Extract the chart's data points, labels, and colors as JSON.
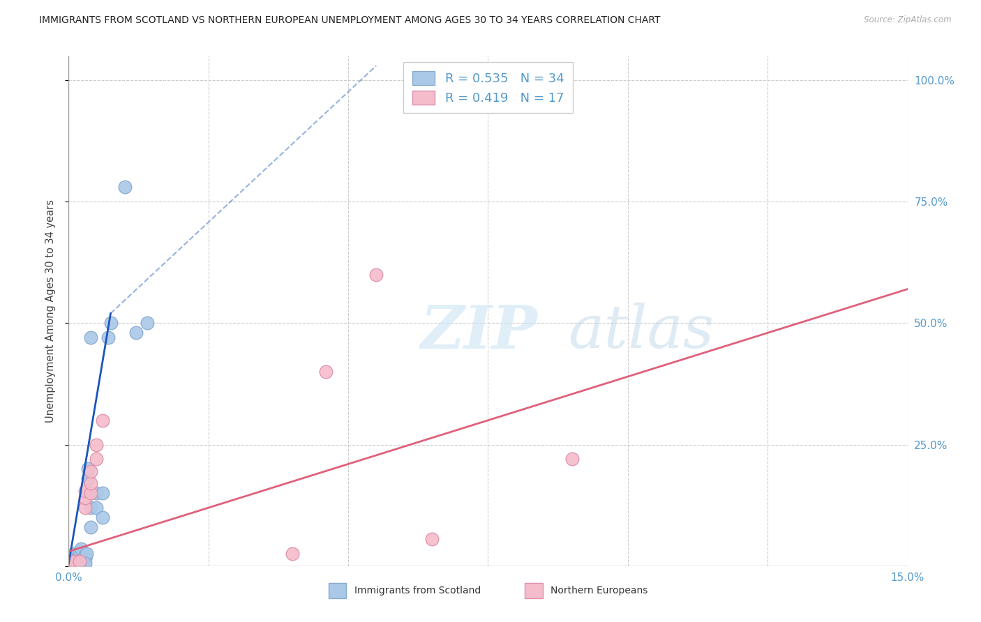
{
  "title": "IMMIGRANTS FROM SCOTLAND VS NORTHERN EUROPEAN UNEMPLOYMENT AMONG AGES 30 TO 34 YEARS CORRELATION CHART",
  "source": "Source: ZipAtlas.com",
  "ylabel": "Unemployment Among Ages 30 to 34 years",
  "xlim": [
    0.0,
    0.15
  ],
  "ylim": [
    0.0,
    1.05
  ],
  "xticks": [
    0.0,
    0.025,
    0.05,
    0.075,
    0.1,
    0.125,
    0.15
  ],
  "xticklabels": [
    "0.0%",
    "",
    "",
    "",
    "",
    "",
    "15.0%"
  ],
  "yticks": [
    0.0,
    0.25,
    0.5,
    0.75,
    1.0
  ],
  "yticklabels_right": [
    "",
    "25.0%",
    "50.0%",
    "75.0%",
    "100.0%"
  ],
  "legend_r1": "0.535",
  "legend_n1": "34",
  "legend_r2": "0.419",
  "legend_n2": "17",
  "scotland_color": "#aac8e8",
  "scotland_edge": "#88aad0",
  "northern_color": "#f5bccb",
  "northern_edge": "#e090a8",
  "line_scotland_color": "#1a55bb",
  "line_northern_color": "#e0607a",
  "scotland_points": [
    [
      0.0005,
      0.005
    ],
    [
      0.0008,
      0.008
    ],
    [
      0.001,
      0.012
    ],
    [
      0.001,
      0.018
    ],
    [
      0.001,
      0.025
    ],
    [
      0.0012,
      0.005
    ],
    [
      0.0015,
      0.01
    ],
    [
      0.0015,
      0.015
    ],
    [
      0.002,
      0.008
    ],
    [
      0.002,
      0.012
    ],
    [
      0.002,
      0.02
    ],
    [
      0.002,
      0.03
    ],
    [
      0.0022,
      0.035
    ],
    [
      0.0025,
      0.005
    ],
    [
      0.003,
      0.015
    ],
    [
      0.003,
      0.018
    ],
    [
      0.003,
      0.022
    ],
    [
      0.0032,
      0.025
    ],
    [
      0.0035,
      0.18
    ],
    [
      0.0035,
      0.2
    ],
    [
      0.004,
      0.08
    ],
    [
      0.004,
      0.12
    ],
    [
      0.004,
      0.15
    ],
    [
      0.004,
      0.47
    ],
    [
      0.005,
      0.12
    ],
    [
      0.005,
      0.15
    ],
    [
      0.006,
      0.1
    ],
    [
      0.006,
      0.15
    ],
    [
      0.007,
      0.47
    ],
    [
      0.0075,
      0.5
    ],
    [
      0.01,
      0.78
    ],
    [
      0.012,
      0.48
    ],
    [
      0.014,
      0.5
    ],
    [
      0.003,
      0.005
    ]
  ],
  "northern_points": [
    [
      0.0005,
      0.005
    ],
    [
      0.001,
      0.01
    ],
    [
      0.002,
      0.01
    ],
    [
      0.003,
      0.12
    ],
    [
      0.003,
      0.14
    ],
    [
      0.003,
      0.155
    ],
    [
      0.004,
      0.15
    ],
    [
      0.004,
      0.17
    ],
    [
      0.004,
      0.195
    ],
    [
      0.005,
      0.22
    ],
    [
      0.005,
      0.25
    ],
    [
      0.006,
      0.3
    ],
    [
      0.04,
      0.025
    ],
    [
      0.065,
      0.055
    ],
    [
      0.046,
      0.4
    ],
    [
      0.09,
      0.22
    ],
    [
      0.055,
      0.6
    ]
  ],
  "trendline_scotland_solid_x0": 0.0,
  "trendline_scotland_solid_y0": 0.005,
  "trendline_scotland_solid_x1": 0.0075,
  "trendline_scotland_solid_y1": 0.52,
  "trendline_scotland_dash_x0": 0.0075,
  "trendline_scotland_dash_y0": 0.52,
  "trendline_scotland_dash_x1": 0.055,
  "trendline_scotland_dash_y1": 1.03,
  "trendline_northern_x0": 0.0,
  "trendline_northern_y0": 0.03,
  "trendline_northern_x1": 0.15,
  "trendline_northern_y1": 0.57
}
